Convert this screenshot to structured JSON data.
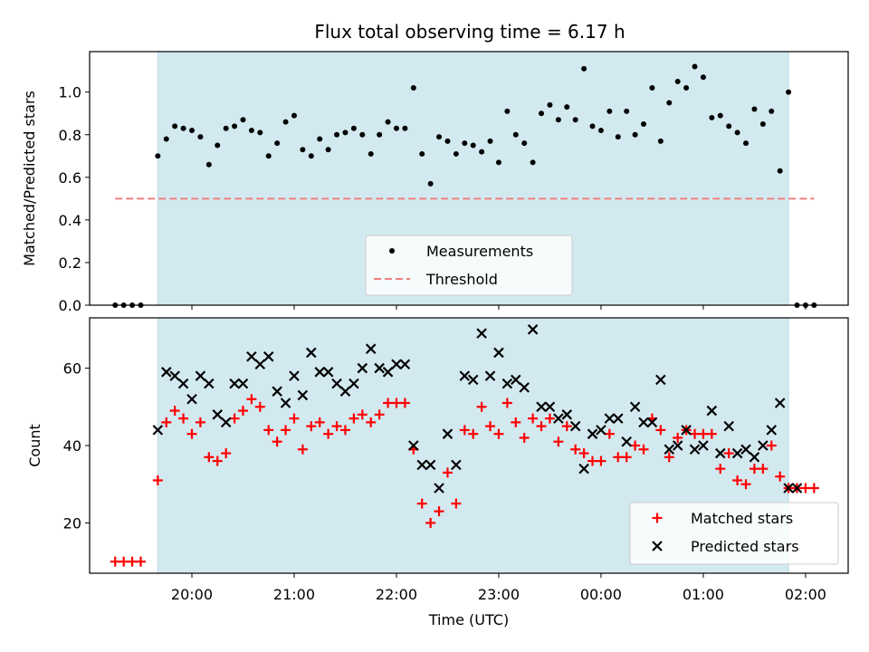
{
  "chart_data": {
    "title": "Flux total observing time = 6.17 h",
    "xlabel": "Time (UTC)",
    "x_ticks": [
      "20:00",
      "21:00",
      "22:00",
      "23:00",
      "00:00",
      "01:00",
      "02:00"
    ],
    "x_range": [
      "19:00",
      "02:25"
    ],
    "shaded_interval": [
      "19:40",
      "01:50"
    ],
    "shade_color": "#d3e9f0",
    "top": {
      "type": "scatter",
      "ylabel": "Matched/Predicted stars",
      "ylim": [
        0,
        1.19
      ],
      "y_ticks": [
        "0.0",
        "0.2",
        "0.4",
        "0.6",
        "0.8",
        "1.0"
      ],
      "threshold": {
        "name": "Threshold",
        "value": 0.5,
        "x_start": "19:15",
        "x_end": "02:05",
        "color": "#f08080"
      },
      "measurements": {
        "name": "Measurements",
        "color": "#000000",
        "x": [
          "19:15",
          "19:20",
          "19:25",
          "19:30",
          "19:40",
          "19:45",
          "19:50",
          "19:55",
          "20:00",
          "20:05",
          "20:10",
          "20:15",
          "20:20",
          "20:25",
          "20:30",
          "20:35",
          "20:40",
          "20:45",
          "20:50",
          "20:55",
          "21:00",
          "21:05",
          "21:10",
          "21:15",
          "21:20",
          "21:25",
          "21:30",
          "21:35",
          "21:40",
          "21:45",
          "21:50",
          "21:55",
          "22:00",
          "22:05",
          "22:10",
          "22:15",
          "22:20",
          "22:25",
          "22:30",
          "22:35",
          "22:40",
          "22:45",
          "22:50",
          "22:55",
          "23:00",
          "23:05",
          "23:10",
          "23:15",
          "23:20",
          "23:25",
          "23:30",
          "23:35",
          "23:40",
          "23:45",
          "23:50",
          "23:55",
          "00:00",
          "00:05",
          "00:10",
          "00:15",
          "00:20",
          "00:25",
          "00:30",
          "00:35",
          "00:40",
          "00:45",
          "00:50",
          "00:55",
          "01:00",
          "01:05",
          "01:10",
          "01:15",
          "01:20",
          "01:25",
          "01:30",
          "01:35",
          "01:40",
          "01:45",
          "01:50",
          "01:55",
          "02:00",
          "02:05"
        ],
        "y": [
          0,
          0,
          0,
          0,
          0.7,
          0.78,
          0.84,
          0.83,
          0.82,
          0.79,
          0.66,
          0.75,
          0.83,
          0.84,
          0.87,
          0.82,
          0.81,
          0.7,
          0.76,
          0.86,
          0.89,
          0.73,
          0.7,
          0.78,
          0.73,
          0.8,
          0.81,
          0.83,
          0.8,
          0.71,
          0.8,
          0.86,
          0.83,
          0.83,
          1.02,
          0.71,
          0.57,
          0.79,
          0.77,
          0.71,
          0.76,
          0.75,
          0.72,
          0.77,
          0.67,
          0.91,
          0.8,
          0.76,
          0.67,
          0.9,
          0.94,
          0.87,
          0.93,
          0.87,
          1.11,
          0.84,
          0.82,
          0.91,
          0.79,
          0.91,
          0.8,
          0.85,
          1.02,
          0.77,
          0.95,
          1.05,
          1.02,
          1.12,
          1.07,
          0.88,
          0.89,
          0.84,
          0.81,
          0.76,
          0.92,
          0.85,
          0.91,
          0.63,
          1.0,
          0,
          0,
          0
        ]
      }
    },
    "bottom": {
      "type": "scatter",
      "ylabel": "Count",
      "ylim": [
        7,
        73
      ],
      "y_ticks": [
        "20",
        "40",
        "60"
      ],
      "series": [
        {
          "name": "Matched stars",
          "color": "#ff0000",
          "marker": "+",
          "x": [
            "19:15",
            "19:20",
            "19:25",
            "19:30",
            "19:40",
            "19:45",
            "19:50",
            "19:55",
            "20:00",
            "20:05",
            "20:10",
            "20:15",
            "20:20",
            "20:25",
            "20:30",
            "20:35",
            "20:40",
            "20:45",
            "20:50",
            "20:55",
            "21:00",
            "21:05",
            "21:10",
            "21:15",
            "21:20",
            "21:25",
            "21:30",
            "21:35",
            "21:40",
            "21:45",
            "21:50",
            "21:55",
            "22:00",
            "22:05",
            "22:10",
            "22:15",
            "22:20",
            "22:25",
            "22:30",
            "22:35",
            "22:40",
            "22:45",
            "22:50",
            "22:55",
            "23:00",
            "23:05",
            "23:10",
            "23:15",
            "23:20",
            "23:25",
            "23:30",
            "23:35",
            "23:40",
            "23:45",
            "23:50",
            "23:55",
            "00:00",
            "00:05",
            "00:10",
            "00:15",
            "00:20",
            "00:25",
            "00:30",
            "00:35",
            "00:40",
            "00:45",
            "00:50",
            "00:55",
            "01:00",
            "01:05",
            "01:10",
            "01:15",
            "01:20",
            "01:25",
            "01:30",
            "01:35",
            "01:40",
            "01:45",
            "01:50",
            "01:55",
            "02:00",
            "02:05"
          ],
          "y": [
            10,
            10,
            10,
            10,
            31,
            46,
            49,
            47,
            43,
            46,
            37,
            36,
            38,
            47,
            49,
            52,
            50,
            44,
            41,
            44,
            47,
            39,
            45,
            46,
            43,
            45,
            44,
            47,
            48,
            46,
            48,
            51,
            51,
            51,
            39,
            25,
            20,
            23,
            33,
            25,
            44,
            43,
            50,
            45,
            43,
            51,
            46,
            42,
            47,
            45,
            47,
            41,
            45,
            39,
            38,
            36,
            36,
            43,
            37,
            37,
            40,
            39,
            47,
            44,
            37,
            42,
            44,
            43,
            43,
            43,
            34,
            38,
            31,
            30,
            34,
            34,
            40,
            32,
            29,
            29,
            29,
            29
          ]
        },
        {
          "name": "Predicted stars",
          "color": "#000000",
          "marker": "x",
          "x": [
            "19:40",
            "19:45",
            "19:50",
            "19:55",
            "20:00",
            "20:05",
            "20:10",
            "20:15",
            "20:20",
            "20:25",
            "20:30",
            "20:35",
            "20:40",
            "20:45",
            "20:50",
            "20:55",
            "21:00",
            "21:05",
            "21:10",
            "21:15",
            "21:20",
            "21:25",
            "21:30",
            "21:35",
            "21:40",
            "21:45",
            "21:50",
            "21:55",
            "22:00",
            "22:05",
            "22:10",
            "22:15",
            "22:20",
            "22:25",
            "22:30",
            "22:35",
            "22:40",
            "22:45",
            "22:50",
            "22:55",
            "23:00",
            "23:05",
            "23:10",
            "23:15",
            "23:20",
            "23:25",
            "23:30",
            "23:35",
            "23:40",
            "23:45",
            "23:50",
            "23:55",
            "00:00",
            "00:05",
            "00:10",
            "00:15",
            "00:20",
            "00:25",
            "00:30",
            "00:35",
            "00:40",
            "00:45",
            "00:50",
            "00:55",
            "01:00",
            "01:05",
            "01:10",
            "01:15",
            "01:20",
            "01:25",
            "01:30",
            "01:35",
            "01:40",
            "01:45",
            "01:50",
            "01:55"
          ],
          "y": [
            44,
            59,
            58,
            56,
            52,
            58,
            56,
            48,
            46,
            56,
            56,
            63,
            61,
            63,
            54,
            51,
            58,
            53,
            64,
            59,
            59,
            56,
            54,
            56,
            60,
            65,
            60,
            59,
            61,
            61,
            40,
            35,
            35,
            29,
            43,
            35,
            58,
            57,
            69,
            58,
            64,
            56,
            57,
            55,
            70,
            50,
            50,
            47,
            48,
            45,
            34,
            43,
            44,
            47,
            47,
            41,
            50,
            46,
            46,
            57,
            39,
            40,
            44,
            39,
            40,
            49,
            38,
            45,
            38,
            39,
            37,
            40,
            44,
            51,
            29,
            29
          ]
        }
      ]
    }
  }
}
